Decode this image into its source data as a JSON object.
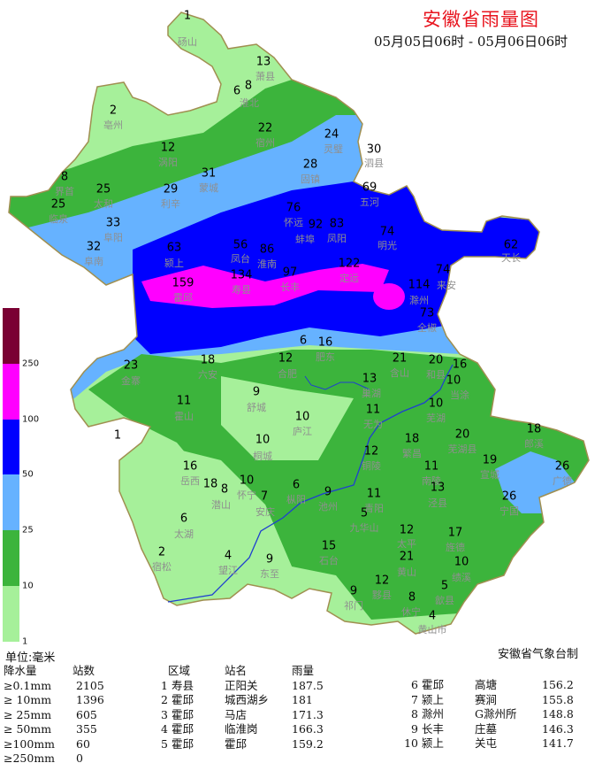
{
  "header": {
    "title": "安徽省雨量图",
    "period": "05月05日06时 - 05月06日06时"
  },
  "legend": {
    "unit": "单位:毫米",
    "ticks": [
      "250",
      "100",
      "50",
      "25",
      "10",
      "1"
    ],
    "colors": [
      "#7a0033",
      "#ff00ff",
      "#0000ff",
      "#66b2ff",
      "#3cb43c",
      "#a6f09a"
    ]
  },
  "agency": "安徽省气象台制",
  "stations": [
    {
      "value": "1",
      "name": "砀山"
    },
    {
      "value": "13",
      "name": "萧县"
    },
    {
      "value": "6",
      "name": ""
    },
    {
      "value": "8",
      "name": "淮北"
    },
    {
      "value": "2",
      "name": "亳州"
    },
    {
      "value": "22",
      "name": "宿州"
    },
    {
      "value": "24",
      "name": "灵璧"
    },
    {
      "value": "30",
      "name": "泗县"
    },
    {
      "value": "12",
      "name": "涡阳"
    },
    {
      "value": "31",
      "name": "蒙城"
    },
    {
      "value": "28",
      "name": "固镇"
    },
    {
      "value": "8",
      "name": "界首"
    },
    {
      "value": "25",
      "name": "太和"
    },
    {
      "value": "29",
      "name": "利辛"
    },
    {
      "value": "25",
      "name": "临泉"
    },
    {
      "value": "69",
      "name": "五河"
    },
    {
      "value": "33",
      "name": "阜阳"
    },
    {
      "value": "76",
      "name": "怀远"
    },
    {
      "value": "92",
      "name": "蚌埠"
    },
    {
      "value": "83",
      "name": "凤阳"
    },
    {
      "value": "74",
      "name": "明光"
    },
    {
      "value": "32",
      "name": "阜南"
    },
    {
      "value": "63",
      "name": "颍上"
    },
    {
      "value": "56",
      "name": "凤台"
    },
    {
      "value": "86",
      "name": "淮南"
    },
    {
      "value": "97",
      "name": "长丰"
    },
    {
      "value": "122",
      "name": "定远"
    },
    {
      "value": "62",
      "name": "天长"
    },
    {
      "value": "159",
      "name": "霍邱"
    },
    {
      "value": "134",
      "name": "寿县"
    },
    {
      "value": "74",
      "name": "来安"
    },
    {
      "value": "114",
      "name": "滁州"
    },
    {
      "value": "73",
      "name": "全椒"
    },
    {
      "value": "16",
      "name": "肥东"
    },
    {
      "value": "6",
      "name": ""
    },
    {
      "value": "12",
      "name": "合肥"
    },
    {
      "value": "23",
      "name": "金寨"
    },
    {
      "value": "18",
      "name": "六安"
    },
    {
      "value": "21",
      "name": "含山"
    },
    {
      "value": "20",
      "name": "和县"
    },
    {
      "value": "16",
      "name": ""
    },
    {
      "value": "13",
      "name": "巢湖"
    },
    {
      "value": "10",
      "name": "当涂"
    },
    {
      "value": "10",
      "name": "芜湖"
    },
    {
      "value": "11",
      "name": "霍山"
    },
    {
      "value": "9",
      "name": "舒城"
    },
    {
      "value": "10",
      "name": "庐江"
    },
    {
      "value": "11",
      "name": "无为"
    },
    {
      "value": "1",
      "name": ""
    },
    {
      "value": "10",
      "name": "桐城"
    },
    {
      "value": "18",
      "name": "繁昌"
    },
    {
      "value": "20",
      "name": "芜湖县"
    },
    {
      "value": "19",
      "name": "宣城"
    },
    {
      "value": "18",
      "name": "郎溪"
    },
    {
      "value": "26",
      "name": "广德"
    },
    {
      "value": "12",
      "name": "铜陵"
    },
    {
      "value": "11",
      "name": "南陵"
    },
    {
      "value": "16",
      "name": "岳西"
    },
    {
      "value": "18",
      "name": ""
    },
    {
      "value": "8",
      "name": "潜山"
    },
    {
      "value": "10",
      "name": "怀宁"
    },
    {
      "value": "7",
      "name": "安庆"
    },
    {
      "value": "6",
      "name": "枞阳"
    },
    {
      "value": "9",
      "name": "池州"
    },
    {
      "value": "11",
      "name": "青阳"
    },
    {
      "value": "13",
      "name": "泾县"
    },
    {
      "value": "26",
      "name": "宁国"
    },
    {
      "value": "5",
      "name": "九华山"
    },
    {
      "value": "6",
      "name": "太湖"
    },
    {
      "value": "2",
      "name": "宿松"
    },
    {
      "value": "4",
      "name": "望江"
    },
    {
      "value": "9",
      "name": "东至"
    },
    {
      "value": "15",
      "name": "石台"
    },
    {
      "value": "12",
      "name": "太平"
    },
    {
      "value": "17",
      "name": "旌德"
    },
    {
      "value": "21",
      "name": "黄山"
    },
    {
      "value": "10",
      "name": "绩溪"
    },
    {
      "value": "9",
      "name": "祁门"
    },
    {
      "value": "12",
      "name": "黟县"
    },
    {
      "value": "5",
      "name": "歙县"
    },
    {
      "value": "8",
      "name": "休宁"
    },
    {
      "value": "4",
      "name": "黄山市"
    }
  ],
  "counts": {
    "headers": [
      "降水量",
      "站数"
    ],
    "rows": [
      [
        "≥0.1mm",
        "2105"
      ],
      [
        "≥ 10mm",
        "1396"
      ],
      [
        "≥ 25mm",
        "605"
      ],
      [
        "≥ 50mm",
        "355"
      ],
      [
        "≥100mm",
        "60"
      ],
      [
        "≥250mm",
        "0"
      ]
    ]
  },
  "top_stations": {
    "headers": [
      "区域",
      "站名",
      "雨量"
    ],
    "rows": [
      [
        "1",
        "寿县",
        "正阳关",
        "187.5"
      ],
      [
        "2",
        "霍邱",
        "城西湖乡",
        "181"
      ],
      [
        "3",
        "霍邱",
        "马店",
        "171.3"
      ],
      [
        "4",
        "霍邱",
        "临淮岗",
        "166.3"
      ],
      [
        "5",
        "霍邱",
        "霍邱",
        "159.2"
      ],
      [
        "6",
        "霍邱",
        "高塘",
        "156.2"
      ],
      [
        "7",
        "颍上",
        "赛涧",
        "155.8"
      ],
      [
        "8",
        "滁州",
        "G滁州所",
        "148.8"
      ],
      [
        "9",
        "长丰",
        "庄墓",
        "146.3"
      ],
      [
        "10",
        "颍上",
        "关屯",
        "141.7"
      ]
    ]
  }
}
